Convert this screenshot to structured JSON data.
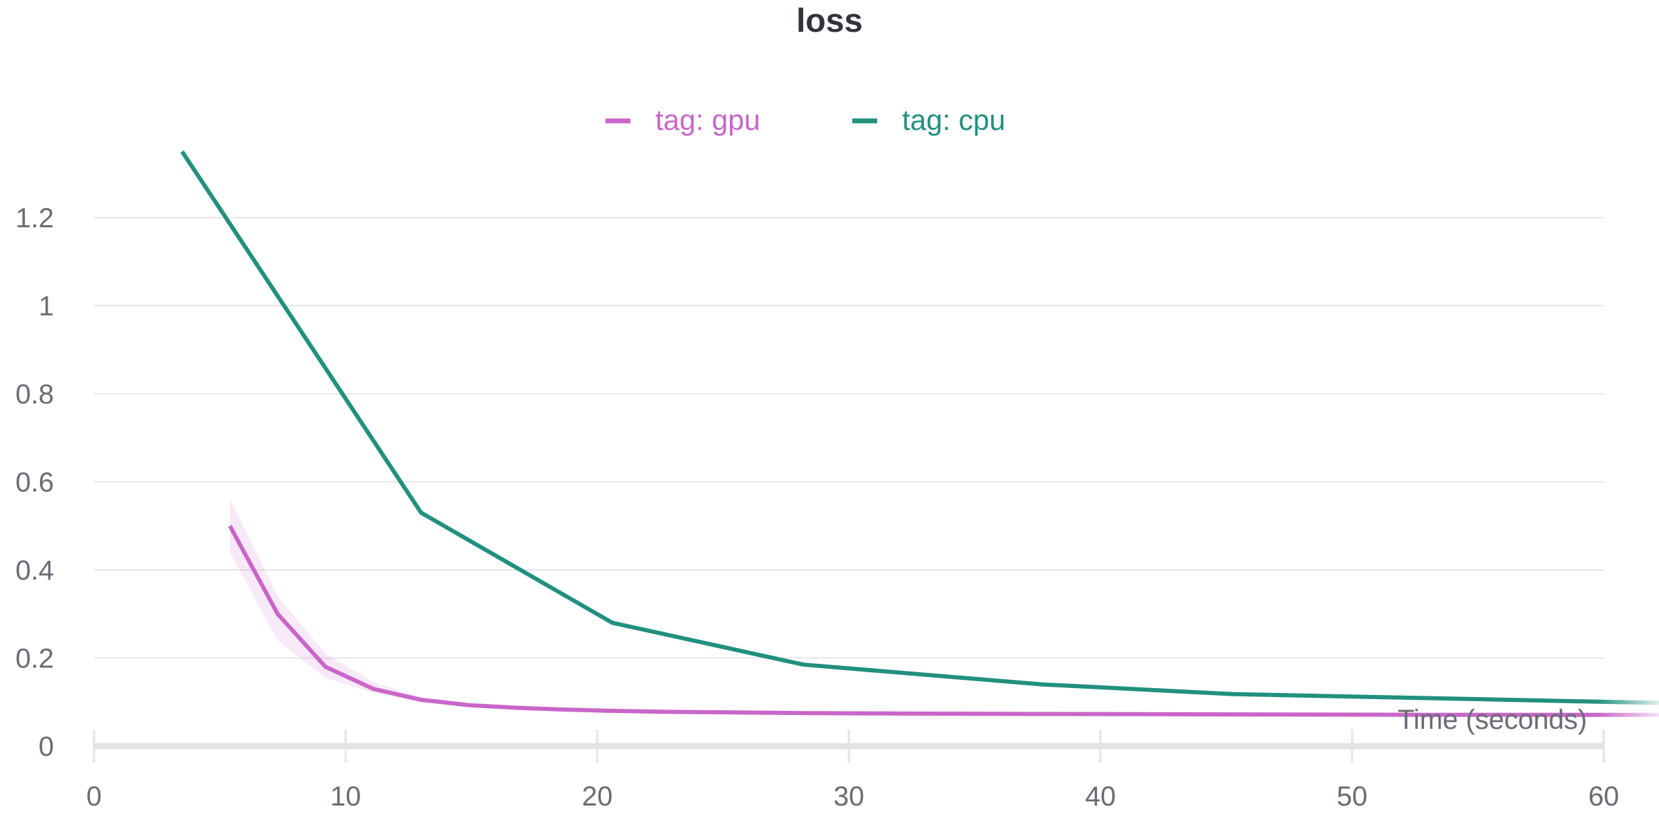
{
  "chart_data": {
    "type": "line",
    "title": "loss",
    "xlabel": "Time (seconds)",
    "ylabel": "",
    "xlim": [
      0,
      60
    ],
    "ylim": [
      0,
      1.35
    ],
    "x_ticks": [
      "0",
      "10",
      "20",
      "30",
      "40",
      "50",
      "60"
    ],
    "y_ticks": [
      "0",
      "0.2",
      "0.4",
      "0.6",
      "0.8",
      "1",
      "1.2"
    ],
    "grid": "horizontal",
    "legend_position": "top-center",
    "series": [
      {
        "name": "tag: gpu",
        "color": "#c966c9",
        "band": true,
        "x": [
          5.4,
          7.3,
          9.2,
          11.1,
          13.0,
          14.9,
          16.8,
          18.7,
          20.6,
          22.5,
          24.4,
          28.2,
          32.0,
          37.7,
          45.3,
          52.9,
          60.5,
          62.4
        ],
        "y": [
          0.5,
          0.3,
          0.18,
          0.13,
          0.105,
          0.093,
          0.087,
          0.083,
          0.08,
          0.078,
          0.077,
          0.075,
          0.074,
          0.073,
          0.072,
          0.071,
          0.071,
          0.071
        ],
        "band_upper": [
          0.56,
          0.34,
          0.21,
          0.145,
          0.112,
          0.097,
          0.089,
          0.084,
          0.081,
          0.079,
          0.078,
          0.076,
          0.075,
          0.074,
          0.073,
          0.072,
          0.072,
          0.072
        ],
        "band_lower": [
          0.44,
          0.24,
          0.155,
          0.12,
          0.1,
          0.09,
          0.085,
          0.082,
          0.079,
          0.077,
          0.076,
          0.074,
          0.073,
          0.072,
          0.071,
          0.07,
          0.07,
          0.07
        ]
      },
      {
        "name": "tag: cpu",
        "color": "#21907f",
        "band": false,
        "x": [
          3.5,
          13.0,
          20.6,
          28.2,
          37.7,
          45.3,
          60.5,
          62.4
        ],
        "y": [
          1.35,
          0.53,
          0.28,
          0.185,
          0.14,
          0.118,
          0.1,
          0.098
        ]
      }
    ]
  }
}
